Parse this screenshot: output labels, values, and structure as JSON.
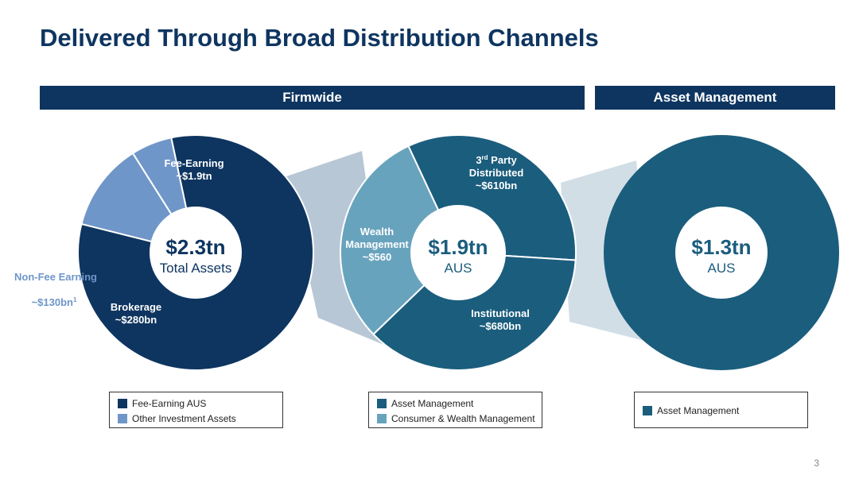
{
  "title": "Delivered Through Broad Distribution Channels",
  "bars": {
    "firmwide": "Firmwide",
    "asset_management": "Asset Management"
  },
  "colors": {
    "navy": "#0e3560",
    "teal": "#1b5d7d",
    "light_teal": "#68a3bd",
    "periwinkle": "#6f96c8",
    "non_fee_label": "#6f96c8"
  },
  "chart_data": [
    {
      "type": "pie",
      "title": "",
      "center_value": "$2.3tn",
      "center_label": "Total Assets",
      "slices": [
        {
          "label": "Fee-Earning",
          "value_label": "~$1.9tn",
          "value": 1.9,
          "color": "#0e3560"
        },
        {
          "label": "Brokerage",
          "value_label": "~$280bn",
          "value": 0.28,
          "color": "#6f96c8"
        },
        {
          "label": "Non-Fee Earning",
          "value_label": "~$130bn",
          "footnote": "1",
          "value": 0.13,
          "color": "#6f96c8"
        }
      ],
      "legend": [
        {
          "label": "Fee-Earning AUS",
          "color": "#0e3560"
        },
        {
          "label": "Other Investment Assets",
          "color": "#6f96c8"
        }
      ]
    },
    {
      "type": "pie",
      "title": "",
      "center_value": "$1.9tn",
      "center_label": "AUS",
      "slices": [
        {
          "label": "3rd Party Distributed",
          "value_label": "~$610bn",
          "value": 610,
          "color": "#1b5d7d"
        },
        {
          "label": "Institutional",
          "value_label": "~$680bn",
          "value": 680,
          "color": "#1b5d7d"
        },
        {
          "label": "Wealth Management",
          "value_label": "~$560",
          "value": 560,
          "color": "#68a3bd"
        }
      ],
      "legend": [
        {
          "label": "Asset Management",
          "color": "#1b5d7d"
        },
        {
          "label": "Consumer & Wealth Management",
          "color": "#68a3bd"
        }
      ]
    },
    {
      "type": "pie",
      "title": "",
      "center_value": "$1.3tn",
      "center_label": "AUS",
      "slices": [
        {
          "label": "Asset Management",
          "value": 1.3,
          "color": "#1b5d7d"
        }
      ],
      "legend": [
        {
          "label": "Asset Management",
          "color": "#1b5d7d"
        }
      ]
    }
  ],
  "page_number": "3"
}
